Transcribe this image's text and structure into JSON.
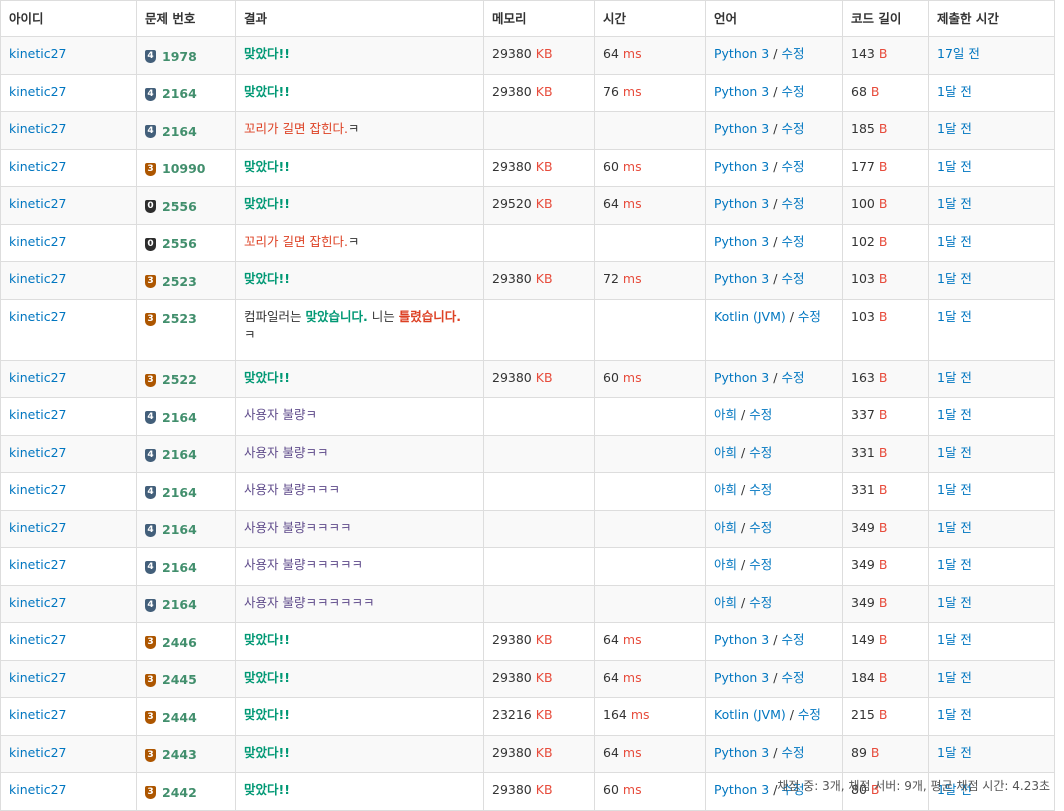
{
  "headers": [
    "아이디",
    "문제 번호",
    "결과",
    "메모리",
    "시간",
    "언어",
    "코드 길이",
    "제출한 시간"
  ],
  "units": {
    "memory": "KB",
    "time": "ms",
    "length": "B"
  },
  "edit_label": "수정",
  "rows": [
    {
      "user": "kinetic27",
      "tier": "4",
      "tier_kind": "silver",
      "problem": "1978",
      "result": "맞았다!!",
      "result_type": "ac",
      "memory": "29380",
      "time": "64",
      "lang": "Python 3",
      "length": "143",
      "submitted": "17일 전"
    },
    {
      "user": "kinetic27",
      "tier": "4",
      "tier_kind": "silver",
      "problem": "2164",
      "result": "맞았다!!",
      "result_type": "ac",
      "memory": "29380",
      "time": "76",
      "lang": "Python 3",
      "length": "68",
      "submitted": "1달 전"
    },
    {
      "user": "kinetic27",
      "tier": "4",
      "tier_kind": "silver",
      "problem": "2164",
      "result": "꼬리가 길면 잡힌다.",
      "result_suffix": "ㅋ",
      "result_type": "wa",
      "memory": "",
      "time": "",
      "lang": "Python 3",
      "length": "185",
      "submitted": "1달 전"
    },
    {
      "user": "kinetic27",
      "tier": "3",
      "tier_kind": "bronze",
      "problem": "10990",
      "result": "맞았다!!",
      "result_type": "ac",
      "memory": "29380",
      "time": "60",
      "lang": "Python 3",
      "length": "177",
      "submitted": "1달 전"
    },
    {
      "user": "kinetic27",
      "tier": "0",
      "tier_kind": "zero",
      "problem": "2556",
      "result": "맞았다!!",
      "result_type": "ac",
      "memory": "29520",
      "time": "64",
      "lang": "Python 3",
      "length": "100",
      "submitted": "1달 전"
    },
    {
      "user": "kinetic27",
      "tier": "0",
      "tier_kind": "zero",
      "problem": "2556",
      "result": "꼬리가 길면 잡힌다.",
      "result_suffix": "ㅋ",
      "result_type": "wa",
      "memory": "",
      "time": "",
      "lang": "Python 3",
      "length": "102",
      "submitted": "1달 전"
    },
    {
      "user": "kinetic27",
      "tier": "3",
      "tier_kind": "bronze",
      "problem": "2523",
      "result": "맞았다!!",
      "result_type": "ac",
      "memory": "29380",
      "time": "72",
      "lang": "Python 3",
      "length": "103",
      "submitted": "1달 전"
    },
    {
      "user": "kinetic27",
      "tier": "3",
      "tier_kind": "bronze",
      "problem": "2523",
      "result_type": "mixed",
      "result_parts": [
        "컴파일러는 ",
        "맞았습니다.",
        "니는 ",
        "틀렸습니다.",
        "ㅋ"
      ],
      "memory": "",
      "time": "",
      "lang": "Kotlin (JVM)",
      "length": "103",
      "submitted": "1달 전"
    },
    {
      "user": "kinetic27",
      "tier": "3",
      "tier_kind": "bronze",
      "problem": "2522",
      "result": "맞았다!!",
      "result_type": "ac",
      "memory": "29380",
      "time": "60",
      "lang": "Python 3",
      "length": "163",
      "submitted": "1달 전"
    },
    {
      "user": "kinetic27",
      "tier": "4",
      "tier_kind": "silver",
      "problem": "2164",
      "result": "사용자 불량ㅋ",
      "result_type": "plain",
      "memory": "",
      "time": "",
      "lang": "아희",
      "length": "337",
      "submitted": "1달 전"
    },
    {
      "user": "kinetic27",
      "tier": "4",
      "tier_kind": "silver",
      "problem": "2164",
      "result": "사용자 불량ㅋㅋ",
      "result_type": "plain",
      "memory": "",
      "time": "",
      "lang": "아희",
      "length": "331",
      "submitted": "1달 전"
    },
    {
      "user": "kinetic27",
      "tier": "4",
      "tier_kind": "silver",
      "problem": "2164",
      "result": "사용자 불량ㅋㅋㅋ",
      "result_type": "plain",
      "memory": "",
      "time": "",
      "lang": "아희",
      "length": "331",
      "submitted": "1달 전"
    },
    {
      "user": "kinetic27",
      "tier": "4",
      "tier_kind": "silver",
      "problem": "2164",
      "result": "사용자 불량ㅋㅋㅋㅋ",
      "result_type": "plain",
      "memory": "",
      "time": "",
      "lang": "아희",
      "length": "349",
      "submitted": "1달 전"
    },
    {
      "user": "kinetic27",
      "tier": "4",
      "tier_kind": "silver",
      "problem": "2164",
      "result": "사용자 불량ㅋㅋㅋㅋㅋ",
      "result_type": "plain",
      "memory": "",
      "time": "",
      "lang": "아희",
      "length": "349",
      "submitted": "1달 전"
    },
    {
      "user": "kinetic27",
      "tier": "4",
      "tier_kind": "silver",
      "problem": "2164",
      "result": "사용자 불량ㅋㅋㅋㅋㅋㅋ",
      "result_type": "plain",
      "memory": "",
      "time": "",
      "lang": "아희",
      "length": "349",
      "submitted": "1달 전"
    },
    {
      "user": "kinetic27",
      "tier": "3",
      "tier_kind": "bronze",
      "problem": "2446",
      "result": "맞았다!!",
      "result_type": "ac",
      "memory": "29380",
      "time": "64",
      "lang": "Python 3",
      "length": "149",
      "submitted": "1달 전"
    },
    {
      "user": "kinetic27",
      "tier": "3",
      "tier_kind": "bronze",
      "problem": "2445",
      "result": "맞았다!!",
      "result_type": "ac",
      "memory": "29380",
      "time": "64",
      "lang": "Python 3",
      "length": "184",
      "submitted": "1달 전"
    },
    {
      "user": "kinetic27",
      "tier": "3",
      "tier_kind": "bronze",
      "problem": "2444",
      "result": "맞았다!!",
      "result_type": "ac",
      "memory": "23216",
      "time": "164",
      "lang": "Kotlin (JVM)",
      "length": "215",
      "submitted": "1달 전"
    },
    {
      "user": "kinetic27",
      "tier": "3",
      "tier_kind": "bronze",
      "problem": "2443",
      "result": "맞았다!!",
      "result_type": "ac",
      "memory": "29380",
      "time": "64",
      "lang": "Python 3",
      "length": "89",
      "submitted": "1달 전"
    },
    {
      "user": "kinetic27",
      "tier": "3",
      "tier_kind": "bronze",
      "problem": "2442",
      "result": "맞았다!!",
      "result_type": "ac",
      "memory": "29380",
      "time": "60",
      "lang": "Python 3",
      "length": "80",
      "submitted": "1달 전"
    }
  ],
  "footer": "채점 중: 3개, 채점 서버: 9개, 평균 채점 시간: 4.23초",
  "colors": {
    "accepted": "#009874",
    "wrong": "#dd4124",
    "link": "#0076c0",
    "unit": "#e74c3c",
    "silver_badge": "#435f7a",
    "bronze_badge": "#ad5600"
  }
}
